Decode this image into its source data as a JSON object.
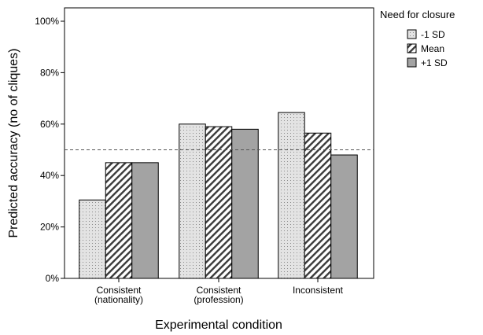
{
  "chart_data": {
    "type": "bar",
    "title": "",
    "xlabel": "Experimental condition",
    "ylabel": "Predicted accuracy (no of cliques)",
    "ylim": [
      0,
      100
    ],
    "yticks": [
      "0%",
      "20%",
      "40%",
      "60%",
      "80%",
      "100%"
    ],
    "ytick_values": [
      0,
      20,
      40,
      60,
      80,
      100
    ],
    "categories": [
      [
        "Consistent",
        "(nationality)"
      ],
      [
        "Consistent",
        "(profession)"
      ],
      [
        "Inconsistent"
      ]
    ],
    "series": [
      {
        "name": "-1 SD",
        "values": [
          30.5,
          60,
          64.5
        ],
        "fill": "#e0e0e0",
        "pattern": "dots"
      },
      {
        "name": "Mean",
        "values": [
          45,
          59,
          56.5
        ],
        "fill": "#ffffff",
        "pattern": "hatch"
      },
      {
        "name": "+1 SD",
        "values": [
          45,
          58,
          48
        ],
        "fill": "#a3a3a3",
        "pattern": "solid"
      }
    ],
    "reference_line": 50,
    "legend_title": "Need for closure",
    "legend_position": "top-right",
    "grid": false
  }
}
